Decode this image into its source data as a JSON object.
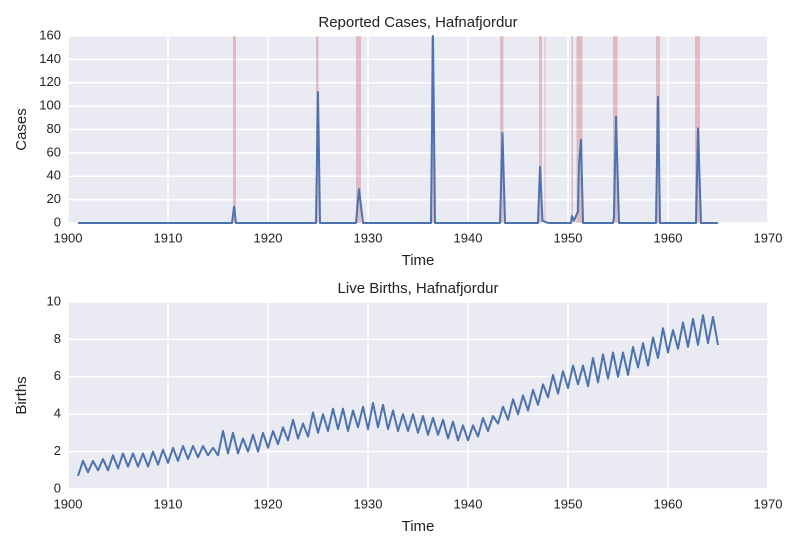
{
  "chart_data": [
    {
      "type": "line",
      "title": "Reported Cases, Hafnafjordur",
      "xlabel": "Time",
      "ylabel": "Cases",
      "xlim": [
        1900,
        1970
      ],
      "xticks": [
        1900,
        1910,
        1920,
        1930,
        1940,
        1950,
        1960,
        1970
      ],
      "ylim": [
        0,
        160
      ],
      "yticks": [
        0,
        20,
        40,
        60,
        80,
        100,
        120,
        140,
        160
      ],
      "grid": true,
      "span_color": "#c44e52",
      "spans": [
        [
          1916.5,
          1916.8
        ],
        [
          1924.8,
          1925.05
        ],
        [
          1928.8,
          1929.3
        ],
        [
          1936.3,
          1936.6
        ],
        [
          1943.2,
          1943.55
        ],
        [
          1947.1,
          1947.4
        ],
        [
          1947.65,
          1947.75
        ],
        [
          1950.35,
          1950.5
        ],
        [
          1950.85,
          1951.45
        ],
        [
          1954.5,
          1954.95
        ],
        [
          1958.8,
          1959.2
        ],
        [
          1962.7,
          1963.2
        ]
      ],
      "series": [
        {
          "name": "Cases",
          "color": "#4c72b0",
          "x": [
            1901,
            1916.4,
            1916.6,
            1916.8,
            1924.8,
            1925.0,
            1925.2,
            1928.8,
            1929.1,
            1929.5,
            1936.3,
            1936.5,
            1936.7,
            1943.2,
            1943.45,
            1943.7,
            1947.0,
            1947.2,
            1947.45,
            1948,
            1950.3,
            1950.4,
            1950.6,
            1951.0,
            1951.1,
            1951.3,
            1951.5,
            1954.5,
            1954.6,
            1954.8,
            1955.1,
            1958.8,
            1959.0,
            1959.2,
            1962.8,
            1963.0,
            1963.3,
            1965
          ],
          "values": [
            0,
            0,
            14,
            0,
            0,
            112,
            0,
            0,
            29,
            0,
            0,
            160,
            0,
            0,
            77,
            0,
            0,
            48,
            2,
            0,
            0,
            6,
            2,
            10,
            50,
            71,
            0,
            0,
            5,
            91,
            0,
            0,
            108,
            0,
            0,
            81,
            0,
            0
          ]
        }
      ]
    },
    {
      "type": "line",
      "title": "Live Births, Hafnafjordur",
      "xlabel": "Time",
      "ylabel": "Births",
      "xlim": [
        1900,
        1970
      ],
      "xticks": [
        1900,
        1910,
        1920,
        1930,
        1940,
        1950,
        1960,
        1970
      ],
      "ylim": [
        0,
        10
      ],
      "yticks": [
        0,
        2,
        4,
        6,
        8,
        10
      ],
      "grid": true,
      "series": [
        {
          "name": "Births",
          "color": "#4c72b0",
          "x": [
            1901,
            1901.5,
            1902,
            1902.5,
            1903,
            1903.5,
            1904,
            1904.5,
            1905,
            1905.5,
            1906,
            1906.5,
            1907,
            1907.5,
            1908,
            1908.5,
            1909,
            1909.5,
            1910,
            1910.5,
            1911,
            1911.5,
            1912,
            1912.5,
            1913,
            1913.5,
            1914,
            1914.5,
            1915,
            1915.5,
            1916,
            1916.5,
            1917,
            1917.5,
            1918,
            1918.5,
            1919,
            1919.5,
            1920,
            1920.5,
            1921,
            1921.5,
            1922,
            1922.5,
            1923,
            1923.5,
            1924,
            1924.5,
            1925,
            1925.5,
            1926,
            1926.5,
            1927,
            1927.5,
            1928,
            1928.5,
            1929,
            1929.5,
            1930,
            1930.5,
            1931,
            1931.5,
            1932,
            1932.5,
            1933,
            1933.5,
            1934,
            1934.5,
            1935,
            1935.5,
            1936,
            1936.5,
            1937,
            1937.5,
            1938,
            1938.5,
            1939,
            1939.5,
            1940,
            1940.5,
            1941,
            1941.5,
            1942,
            1942.5,
            1943,
            1943.5,
            1944,
            1944.5,
            1945,
            1945.5,
            1946,
            1946.5,
            1947,
            1947.5,
            1948,
            1948.5,
            1949,
            1949.5,
            1950,
            1950.5,
            1951,
            1951.5,
            1952,
            1952.5,
            1953,
            1953.5,
            1954,
            1954.5,
            1955,
            1955.5,
            1956,
            1956.5,
            1957,
            1957.5,
            1958,
            1958.5,
            1959,
            1959.5,
            1960,
            1960.5,
            1961,
            1961.5,
            1962,
            1962.5,
            1963,
            1963.5,
            1964,
            1964.5,
            1965
          ],
          "values": [
            0.7,
            1.5,
            0.9,
            1.5,
            1.0,
            1.6,
            1.0,
            1.8,
            1.1,
            1.9,
            1.2,
            1.9,
            1.2,
            1.9,
            1.2,
            2.0,
            1.3,
            2.1,
            1.4,
            2.2,
            1.5,
            2.3,
            1.6,
            2.3,
            1.7,
            2.3,
            1.8,
            2.2,
            1.8,
            3.1,
            1.9,
            3.0,
            1.9,
            2.7,
            2.0,
            2.9,
            2.0,
            3.0,
            2.2,
            3.1,
            2.4,
            3.3,
            2.6,
            3.7,
            2.7,
            3.5,
            2.8,
            4.1,
            3.0,
            4.0,
            3.1,
            4.3,
            3.2,
            4.3,
            3.1,
            4.2,
            3.3,
            4.4,
            3.2,
            4.6,
            3.3,
            4.5,
            3.2,
            4.2,
            3.1,
            4.0,
            3.1,
            4.0,
            3.0,
            3.9,
            2.9,
            3.8,
            2.9,
            3.7,
            2.7,
            3.6,
            2.6,
            3.4,
            2.6,
            3.4,
            2.8,
            3.8,
            3.1,
            3.9,
            3.5,
            4.4,
            3.7,
            4.8,
            4.0,
            5.0,
            4.2,
            5.3,
            4.5,
            5.6,
            4.9,
            6.1,
            5.1,
            6.3,
            5.4,
            6.6,
            5.6,
            6.6,
            5.5,
            7.0,
            5.7,
            7.2,
            5.9,
            7.3,
            6.0,
            7.3,
            6.1,
            7.6,
            6.5,
            7.8,
            6.6,
            8.1,
            7.0,
            8.6,
            7.3,
            8.5,
            7.5,
            8.9,
            7.6,
            9.1,
            7.7,
            9.3,
            7.8,
            9.2,
            7.7
          ]
        }
      ]
    }
  ]
}
